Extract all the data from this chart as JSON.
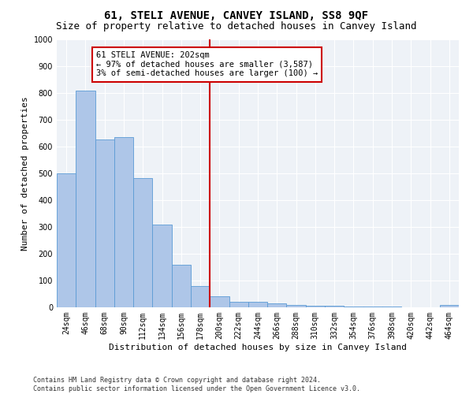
{
  "title1": "61, STELI AVENUE, CANVEY ISLAND, SS8 9QF",
  "title2": "Size of property relative to detached houses in Canvey Island",
  "xlabel": "Distribution of detached houses by size in Canvey Island",
  "ylabel": "Number of detached properties",
  "footer1": "Contains HM Land Registry data © Crown copyright and database right 2024.",
  "footer2": "Contains public sector information licensed under the Open Government Licence v3.0.",
  "categories": [
    "24sqm",
    "46sqm",
    "68sqm",
    "90sqm",
    "112sqm",
    "134sqm",
    "156sqm",
    "178sqm",
    "200sqm",
    "222sqm",
    "244sqm",
    "266sqm",
    "288sqm",
    "310sqm",
    "332sqm",
    "354sqm",
    "376sqm",
    "398sqm",
    "420sqm",
    "442sqm",
    "464sqm"
  ],
  "values": [
    500,
    810,
    625,
    635,
    483,
    310,
    160,
    80,
    42,
    22,
    22,
    16,
    10,
    7,
    5,
    3,
    2,
    2,
    1,
    1,
    8
  ],
  "bar_color": "#aec6e8",
  "bar_edge_color": "#5b9bd5",
  "property_line_index": 8,
  "property_line_color": "#cc0000",
  "annotation_title": "61 STELI AVENUE: 202sqm",
  "annotation_line1": "← 97% of detached houses are smaller (3,587)",
  "annotation_line2": "3% of semi-detached houses are larger (100) →",
  "annotation_box_color": "#cc0000",
  "ylim": [
    0,
    1000
  ],
  "yticks": [
    0,
    100,
    200,
    300,
    400,
    500,
    600,
    700,
    800,
    900,
    1000
  ],
  "background_color": "#eef2f7",
  "grid_color": "#ffffff",
  "title1_fontsize": 10,
  "title2_fontsize": 9,
  "axis_label_fontsize": 8,
  "tick_fontsize": 7,
  "annotation_fontsize": 7.5,
  "footer_fontsize": 6
}
